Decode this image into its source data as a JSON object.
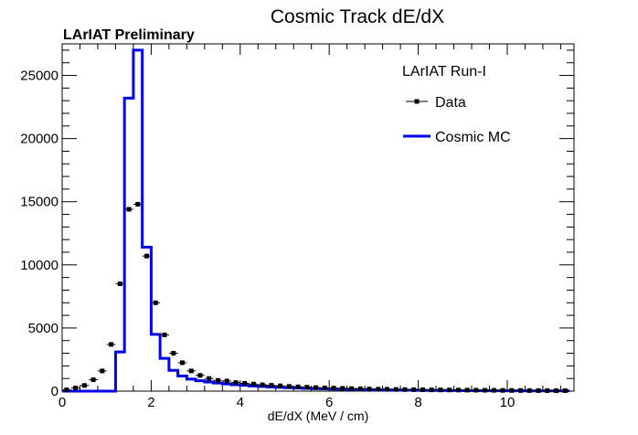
{
  "chart_data": {
    "type": "histogram",
    "title": "Cosmic Track dE/dX",
    "subtitle": "LArIAT Preliminary",
    "xlabel": "dE/dX (MeV / cm)",
    "ylabel": "",
    "xlim": [
      0,
      11.5
    ],
    "ylim": [
      0,
      27500
    ],
    "x_ticks": [
      0,
      2,
      4,
      6,
      8,
      10
    ],
    "x_tick_labels": [
      "0",
      "2",
      "4",
      "6",
      "8",
      "10"
    ],
    "y_ticks": [
      0,
      5000,
      10000,
      15000,
      20000,
      25000
    ],
    "y_tick_labels": [
      "0",
      "5000",
      "10000",
      "15000",
      "20000",
      "25000"
    ],
    "grid": false,
    "legend": {
      "placement": "top-right",
      "header": "LArIAT Run-I",
      "entries": [
        {
          "label": "Data",
          "style": "marker"
        },
        {
          "label": "Cosmic MC",
          "style": "line"
        }
      ]
    },
    "bin_width": 0.2,
    "series": [
      {
        "name": "Data",
        "style": "points",
        "color": "#000000",
        "x": [
          0.1,
          0.3,
          0.5,
          0.7,
          0.9,
          1.1,
          1.3,
          1.5,
          1.7,
          1.9,
          2.1,
          2.3,
          2.5,
          2.7,
          2.9,
          3.1,
          3.3,
          3.5,
          3.7,
          3.9,
          4.1,
          4.3,
          4.5,
          4.7,
          4.9,
          5.1,
          5.3,
          5.5,
          5.7,
          5.9,
          6.1,
          6.3,
          6.5,
          6.7,
          6.9,
          7.1,
          7.3,
          7.5,
          7.7,
          7.9,
          8.1,
          8.3,
          8.5,
          8.7,
          8.9,
          9.1,
          9.3,
          9.5,
          9.7,
          9.9,
          10.1,
          10.3,
          10.5,
          10.7,
          10.9,
          11.1,
          11.3
        ],
        "y": [
          100,
          250,
          450,
          900,
          1600,
          3700,
          8500,
          14400,
          14800,
          10700,
          7000,
          4450,
          3000,
          2250,
          1600,
          1250,
          1000,
          850,
          800,
          680,
          620,
          560,
          500,
          460,
          420,
          370,
          340,
          310,
          280,
          260,
          240,
          220,
          200,
          185,
          170,
          155,
          145,
          135,
          125,
          115,
          110,
          100,
          95,
          90,
          85,
          80,
          75,
          70,
          65,
          60,
          55,
          52,
          48,
          45,
          42,
          40,
          38
        ]
      },
      {
        "name": "Cosmic MC",
        "style": "step",
        "color": "#0000ee",
        "x": [
          0.1,
          0.3,
          0.5,
          0.7,
          0.9,
          1.1,
          1.3,
          1.5,
          1.7,
          1.9,
          2.1,
          2.3,
          2.5,
          2.7,
          2.9,
          3.1,
          3.3,
          3.5,
          3.7,
          3.9,
          4.1,
          4.3,
          4.5,
          4.7,
          4.9,
          5.1,
          5.3,
          5.5,
          5.7,
          5.9,
          6.1,
          6.3,
          6.5,
          6.7,
          6.9,
          7.1,
          7.3,
          7.5,
          7.7,
          7.9,
          8.1,
          8.3,
          8.5,
          8.7,
          8.9,
          9.1,
          9.3,
          9.5,
          9.7,
          9.9,
          10.1,
          10.3,
          10.5,
          10.7,
          10.9,
          11.1,
          11.3
        ],
        "y": [
          0,
          0,
          0,
          0,
          0,
          0,
          3100,
          23200,
          27000,
          11400,
          4500,
          2600,
          1650,
          1200,
          950,
          820,
          720,
          640,
          570,
          510,
          460,
          410,
          370,
          330,
          300,
          270,
          245,
          220,
          200,
          180,
          165,
          150,
          135,
          120,
          110,
          100,
          92,
          84,
          76,
          70,
          64,
          58,
          53,
          48,
          44,
          40,
          36,
          33,
          30,
          27,
          25,
          23,
          21,
          19,
          17,
          16,
          15
        ]
      }
    ]
  }
}
